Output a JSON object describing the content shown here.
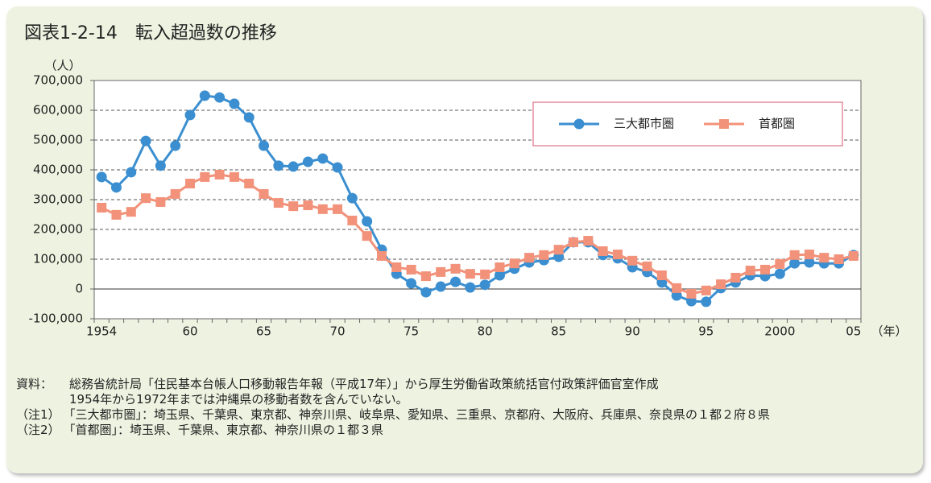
{
  "chart_data": {
    "type": "line",
    "title": "図表1-2-14　転入超過数の推移",
    "y_label": "（人）",
    "x_label": "（年）",
    "categories": [
      "1954",
      null,
      null,
      null,
      null,
      null,
      "60",
      null,
      null,
      null,
      null,
      "65",
      null,
      null,
      null,
      null,
      "70",
      null,
      null,
      null,
      null,
      "75",
      null,
      null,
      null,
      null,
      "80",
      null,
      null,
      null,
      null,
      "85",
      null,
      null,
      null,
      null,
      "90",
      null,
      null,
      null,
      null,
      "95",
      null,
      null,
      null,
      null,
      "2000",
      null,
      null,
      null,
      null,
      "05"
    ],
    "series": [
      {
        "name": "三大都市圏",
        "color": "#3b8fd0",
        "marker": "circle",
        "values": [
          376000,
          341000,
          392000,
          497000,
          414000,
          481000,
          584000,
          649000,
          643000,
          622000,
          576000,
          481000,
          414000,
          411000,
          427000,
          438000,
          408000,
          305000,
          227000,
          132000,
          51000,
          19000,
          -11000,
          8000,
          24000,
          5000,
          14000,
          46000,
          68000,
          89000,
          97000,
          108000,
          157000,
          157000,
          114000,
          103000,
          73000,
          57000,
          22000,
          -22000,
          -41000,
          -43000,
          3000,
          22000,
          46000,
          43000,
          51000,
          86000,
          89000,
          86000,
          86000,
          114000
        ]
      },
      {
        "name": "首都圏",
        "color": "#f2927a",
        "marker": "square",
        "values": [
          273000,
          249000,
          259000,
          305000,
          292000,
          319000,
          354000,
          376000,
          384000,
          376000,
          354000,
          319000,
          289000,
          278000,
          281000,
          268000,
          268000,
          230000,
          178000,
          111000,
          73000,
          65000,
          43000,
          57000,
          68000,
          51000,
          49000,
          73000,
          86000,
          105000,
          114000,
          132000,
          157000,
          162000,
          127000,
          116000,
          95000,
          76000,
          46000,
          3000,
          -16000,
          -5000,
          16000,
          38000,
          62000,
          65000,
          84000,
          114000,
          116000,
          105000,
          100000,
          111000
        ]
      }
    ],
    "ylim": [
      -100000,
      700000
    ],
    "yticks": [
      {
        "value": -100000,
        "label": "-100,000"
      },
      0,
      {
        "value": 100000,
        "label": "100,000"
      },
      {
        "value": 200000,
        "label": "200,000"
      },
      {
        "value": 300000,
        "label": "300,000"
      },
      {
        "value": 400000,
        "label": "400,000"
      },
      {
        "value": 500000,
        "label": "500,000"
      },
      {
        "value": 600000,
        "label": "600,000"
      },
      {
        "value": 700000,
        "label": "700,000"
      }
    ],
    "grid": true,
    "legend": "upper right",
    "source": {
      "label": "資料：",
      "lines": [
        "総務省統計局「住民基本台帳人口移動報告年報（平成17年）」から厚生労働省政策統括官付政策評価官室作成",
        "1954年から1972年までは沖縄県の移動者数を含んでいない。"
      ]
    },
    "notes": [
      {
        "label": "（注1）",
        "text": "「三大都市圏」：埼玉県、千葉県、東京都、神奈川県、岐阜県、愛知県、三重県、京都府、大阪府、兵庫県、奈良県の１都２府８県"
      },
      {
        "label": "（注2）",
        "text": "「首都圏」：埼玉県、千葉県、東京都、神奈川県の１都３県"
      }
    ]
  }
}
